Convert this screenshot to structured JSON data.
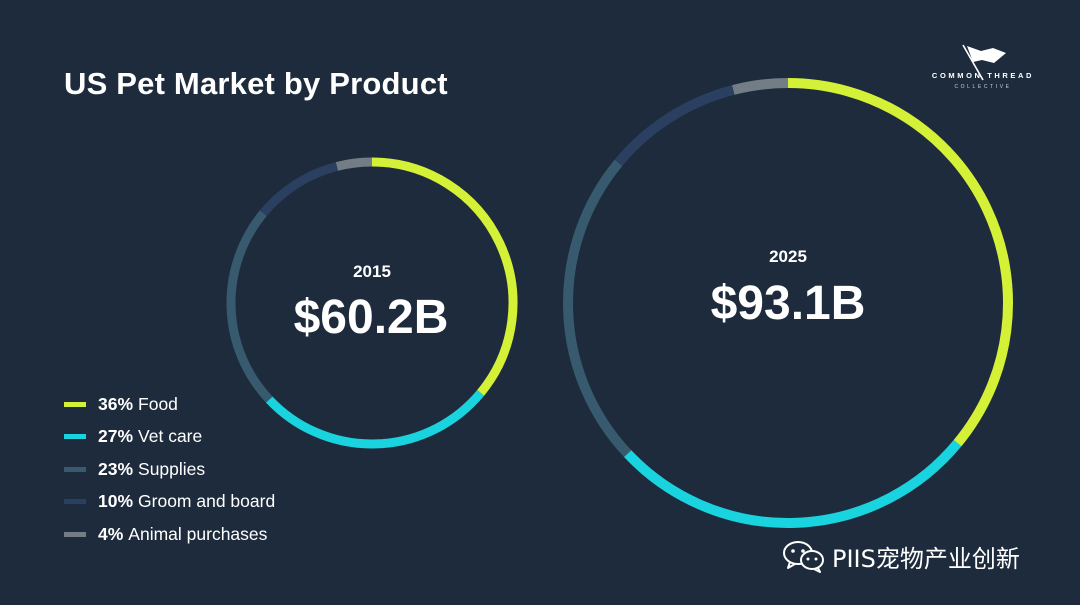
{
  "slide": {
    "title": "US Pet Market by Product",
    "background": "#1d2b3c"
  },
  "logo": {
    "name": "COMMON THREAD",
    "sub": "COLLECTIVE",
    "icon": "flag-icon"
  },
  "watermark": {
    "text": "PIIS宠物产业创新",
    "icon": "wechat-icon"
  },
  "chart_data": {
    "type": "pie",
    "variant": "donut",
    "categories": [
      "Food",
      "Vet care",
      "Supplies",
      "Groom and board",
      "Animal purchases"
    ],
    "shares_pct": [
      36,
      27,
      23,
      10,
      4
    ],
    "colors": [
      "#d4f037",
      "#19d3df",
      "#375a6e",
      "#2b3f60",
      "#737d86"
    ],
    "legend": [
      {
        "pct": "36%",
        "label": "Food",
        "color": "#d4f037"
      },
      {
        "pct": "27%",
        "label": "Vet care",
        "color": "#19d3df"
      },
      {
        "pct": "23%",
        "label": "Supplies",
        "color": "#375a6e"
      },
      {
        "pct": "10%",
        "label": "Groom and board",
        "color": "#2b3f60"
      },
      {
        "pct": "4%",
        "label": "Animal purchases",
        "color": "#737d86"
      }
    ],
    "legend_position": "bottom-left",
    "donuts": [
      {
        "year": "2015",
        "total_label": "$60.2B",
        "total_value_billion_usd": 60.2
      },
      {
        "year": "2025",
        "total_label": "$93.1B",
        "total_value_billion_usd": 93.1
      }
    ]
  }
}
